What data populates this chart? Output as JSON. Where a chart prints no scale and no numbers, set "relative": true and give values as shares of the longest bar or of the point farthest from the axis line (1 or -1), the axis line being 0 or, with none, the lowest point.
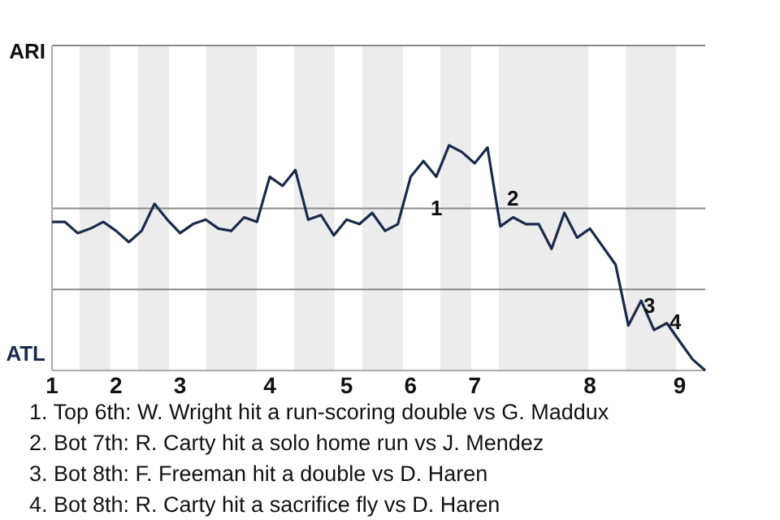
{
  "chart_data": {
    "type": "line",
    "relative": true,
    "categories": [
      "1",
      null,
      null,
      null,
      null,
      "2",
      null,
      null,
      null,
      null,
      "3",
      null,
      null,
      null,
      null,
      null,
      null,
      "4",
      null,
      null,
      null,
      null,
      null,
      "5",
      null,
      null,
      null,
      null,
      "6",
      null,
      null,
      null,
      null,
      "7",
      null,
      null,
      null,
      null,
      null,
      null,
      null,
      null,
      "8",
      null,
      null,
      null,
      null,
      null,
      null,
      "9",
      null,
      null
    ],
    "series": [
      {
        "color": "#1b2a4a",
        "values": [
          0.66,
          0.66,
          0.61,
          0.63,
          0.66,
          0.62,
          0.57,
          0.62,
          0.74,
          0.67,
          0.61,
          0.65,
          0.67,
          0.63,
          0.62,
          0.68,
          0.66,
          0.86,
          0.82,
          0.89,
          0.67,
          0.69,
          0.6,
          0.67,
          0.65,
          0.7,
          0.62,
          0.65,
          0.86,
          0.93,
          0.86,
          1,
          0.97,
          0.92,
          0.99,
          0.64,
          0.68,
          0.65,
          0.65,
          0.54,
          0.7,
          0.59,
          0.63,
          0.55,
          0.47,
          0.2,
          0.31,
          0.18,
          0.21,
          0.13,
          0.05,
          0
        ]
      }
    ],
    "ref_lines": [
      {
        "axis": "y",
        "value": 0.36,
        "color": "#8a8a8a"
      },
      {
        "axis": "y",
        "value": 0.72,
        "color": "#8a8a8a"
      }
    ],
    "marker": "none",
    "line_style": "solid",
    "annotations": [
      "ARI",
      "ATL",
      "1",
      "2",
      "3",
      "4",
      "1. Top 6th: W. Wright hit a run-scoring double vs G. Maddux",
      "2. Bot 7th: R. Carty hit a solo home run vs J. Mendez",
      "3. Bot 8th: F. Freeman hit a double vs D. Haren",
      "4. Bot 8th: R. Carty hit a sacrifice fly vs D. Haren"
    ]
  }
}
